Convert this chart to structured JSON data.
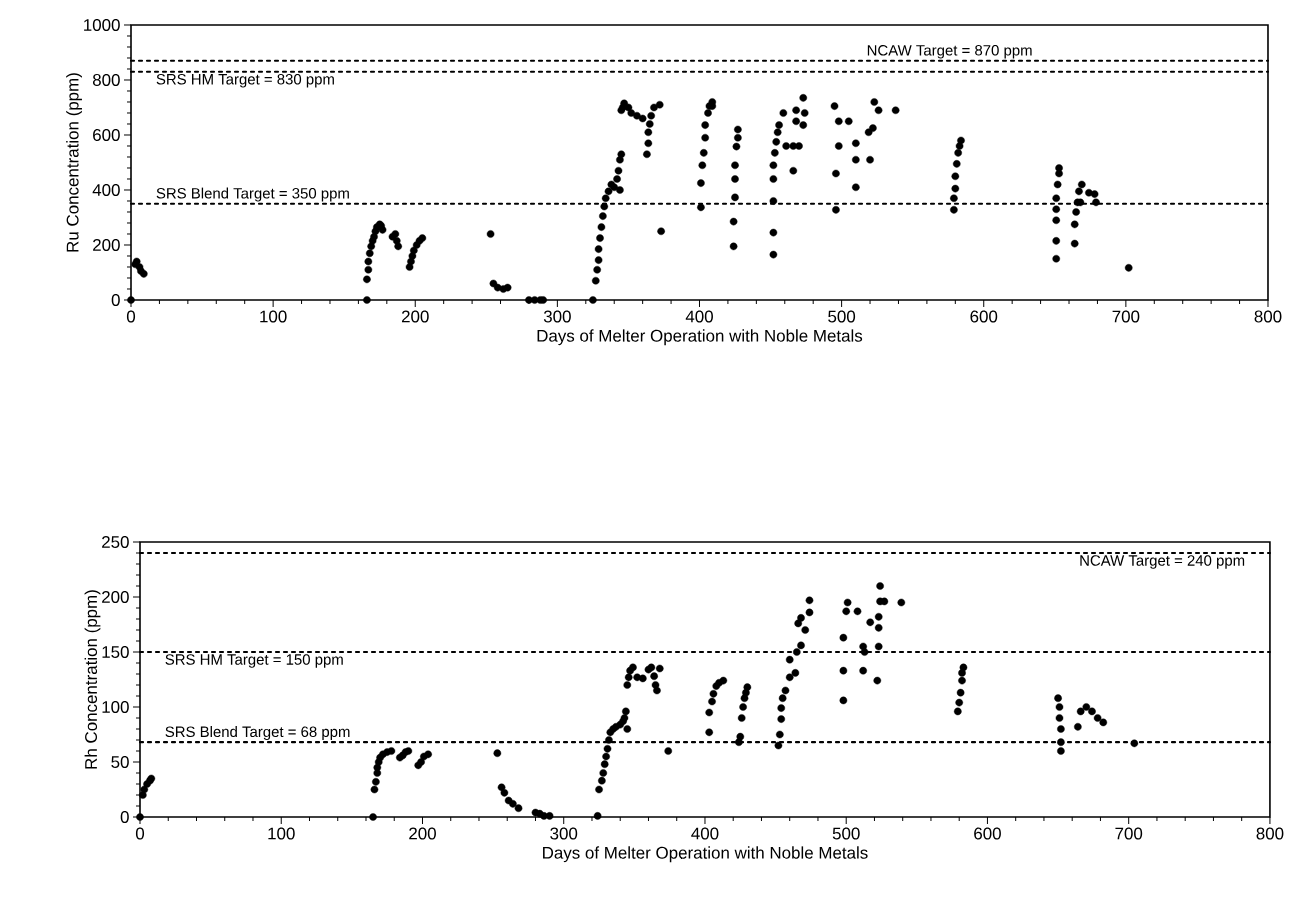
{
  "chart_data": [
    {
      "type": "scatter",
      "xlabel": "Days of Melter Operation with Noble Metals",
      "ylabel": "Ru Concentration (ppm)",
      "xlim": [
        0,
        800
      ],
      "ylim": [
        0,
        1000
      ],
      "xticks": [
        0,
        100,
        200,
        300,
        400,
        500,
        600,
        700,
        800
      ],
      "yticks": [
        0,
        200,
        400,
        600,
        800,
        1000
      ],
      "marker": "circle",
      "grid": false,
      "series": [
        {
          "color": "#000000",
          "x": [
            0,
            3,
            4,
            6,
            7,
            9,
            166,
            166,
            167,
            167,
            168,
            169,
            170,
            171,
            172,
            173,
            175,
            176,
            177,
            184,
            186,
            187,
            188,
            196,
            197,
            198,
            199,
            201,
            203,
            205,
            253,
            255,
            258,
            262,
            265,
            280,
            284,
            288,
            290,
            325,
            327,
            328,
            329,
            329,
            330,
            331,
            332,
            333,
            334,
            336,
            338,
            340,
            342,
            343,
            344,
            345,
            344,
            345,
            346,
            347,
            350,
            352,
            356,
            360,
            363,
            364,
            364,
            365,
            366,
            368,
            372,
            373,
            401,
            401,
            402,
            403,
            404,
            404,
            406,
            407,
            409,
            409,
            424,
            424,
            425,
            425,
            425,
            426,
            427,
            427,
            452,
            452,
            452,
            452,
            452,
            453,
            454,
            455,
            456,
            459,
            461,
            466,
            466,
            468,
            468,
            473,
            474,
            473,
            470,
            495,
            498,
            498,
            496,
            496,
            505,
            510,
            510,
            520,
            510,
            519,
            522,
            523,
            526,
            538,
            579,
            579,
            580,
            580,
            581,
            582,
            583,
            584,
            651,
            651,
            651,
            651,
            651,
            652,
            653,
            653,
            664,
            664,
            665,
            666,
            667,
            669,
            674,
            678,
            679,
            668,
            702
          ],
          "values": [
            0,
            130,
            140,
            120,
            105,
            95,
            0,
            75,
            110,
            140,
            170,
            195,
            215,
            230,
            250,
            265,
            275,
            270,
            255,
            230,
            240,
            215,
            195,
            120,
            140,
            160,
            180,
            200,
            215,
            225,
            240,
            60,
            45,
            40,
            45,
            0,
            0,
            0,
            0,
            0,
            70,
            110,
            145,
            185,
            225,
            265,
            305,
            340,
            370,
            395,
            420,
            410,
            440,
            470,
            510,
            530,
            400,
            690,
            700,
            715,
            700,
            680,
            670,
            660,
            530,
            570,
            610,
            640,
            670,
            700,
            710,
            250,
            337,
            425,
            490,
            535,
            590,
            636,
            680,
            705,
            720,
            705,
            195,
            285,
            373,
            440,
            490,
            558,
            590,
            620,
            165,
            245,
            360,
            440,
            490,
            535,
            575,
            610,
            636,
            680,
            560,
            470,
            560,
            650,
            690,
            735,
            680,
            636,
            560,
            705,
            650,
            560,
            460,
            328,
            650,
            570,
            510,
            510,
            410,
            610,
            625,
            720,
            690,
            690,
            328,
            370,
            405,
            450,
            495,
            535,
            560,
            580,
            150,
            215,
            290,
            330,
            370,
            420,
            460,
            480,
            205,
            275,
            320,
            355,
            395,
            420,
            390,
            385,
            355,
            355,
            117
          ]
        }
      ],
      "ref_lines": [
        {
          "axis": "y",
          "value": 870,
          "label": "NCAW Target = 870 ppm",
          "line_style": "dotted"
        },
        {
          "axis": "y",
          "value": 830,
          "label": "SRS HM Target = 830 ppm",
          "line_style": "dotted"
        },
        {
          "axis": "y",
          "value": 350,
          "label": "SRS Blend Target = 350 ppm",
          "line_style": "dotted"
        }
      ]
    },
    {
      "type": "scatter",
      "xlabel": "Days of Melter Operation with Noble Metals",
      "ylabel": "Rh Concentration (ppm)",
      "xlim": [
        0,
        800
      ],
      "ylim": [
        0,
        250
      ],
      "xticks": [
        0,
        100,
        200,
        300,
        400,
        500,
        600,
        700,
        800
      ],
      "yticks": [
        0,
        50,
        100,
        150,
        200,
        250
      ],
      "marker": "circle",
      "grid": false,
      "series": [
        {
          "color": "#000000",
          "x": [
            0,
            2,
            3,
            5,
            7,
            8,
            165,
            166,
            167,
            168,
            168,
            169,
            170,
            172,
            175,
            178,
            184,
            186,
            188,
            190,
            197,
            199,
            201,
            204,
            253,
            256,
            258,
            261,
            264,
            268,
            280,
            283,
            286,
            290,
            324,
            325,
            327,
            328,
            329,
            330,
            331,
            332,
            333,
            335,
            337,
            340,
            342,
            343,
            344,
            345,
            345,
            346,
            347,
            349,
            352,
            356,
            360,
            362,
            364,
            365,
            366,
            368,
            374,
            403,
            403,
            405,
            406,
            408,
            410,
            413,
            424,
            425,
            426,
            427,
            428,
            429,
            430,
            452,
            453,
            454,
            454,
            455,
            457,
            460,
            464,
            460,
            465,
            468,
            466,
            471,
            474,
            474,
            468,
            498,
            498,
            498,
            500,
            501,
            508,
            512,
            513,
            512,
            522,
            517,
            523,
            523,
            523,
            524,
            524,
            527,
            539,
            579,
            580,
            581,
            582,
            582,
            583,
            650,
            651,
            651,
            652,
            652,
            652,
            664,
            666,
            670,
            674,
            678,
            682,
            704
          ],
          "values": [
            0,
            20,
            25,
            30,
            33,
            35,
            0,
            25,
            32,
            40,
            45,
            50,
            54,
            57,
            59,
            60,
            54,
            56,
            59,
            60,
            47,
            50,
            55,
            57,
            58,
            27,
            22,
            15,
            12,
            8,
            4,
            3,
            1,
            1,
            1,
            25,
            33,
            40,
            48,
            55,
            62,
            70,
            77,
            80,
            82,
            84,
            87,
            90,
            96,
            80,
            120,
            127,
            133,
            136,
            127,
            126,
            134,
            136,
            128,
            120,
            115,
            135,
            60,
            77,
            95,
            105,
            112,
            119,
            122,
            124,
            68,
            73,
            90,
            100,
            108,
            113,
            118,
            65,
            75,
            89,
            99,
            108,
            115,
            127,
            131,
            143,
            150,
            156,
            176,
            170,
            186,
            197,
            181,
            106,
            133,
            163,
            187,
            195,
            187,
            155,
            150,
            133,
            124,
            177,
            155,
            172,
            182,
            196,
            210,
            196,
            195,
            96,
            104,
            113,
            124,
            131,
            136,
            108,
            100,
            90,
            80,
            68,
            60,
            82,
            96,
            100,
            96,
            90,
            86,
            67
          ]
        }
      ],
      "ref_lines": [
        {
          "axis": "y",
          "value": 240,
          "label": "NCAW Target = 240 ppm",
          "line_style": "dotted"
        },
        {
          "axis": "y",
          "value": 150,
          "label": "SRS HM Target = 150 ppm",
          "line_style": "dotted"
        },
        {
          "axis": "y",
          "value": 68,
          "label": "SRS Blend Target = 68 ppm",
          "line_style": "dotted"
        }
      ]
    }
  ]
}
